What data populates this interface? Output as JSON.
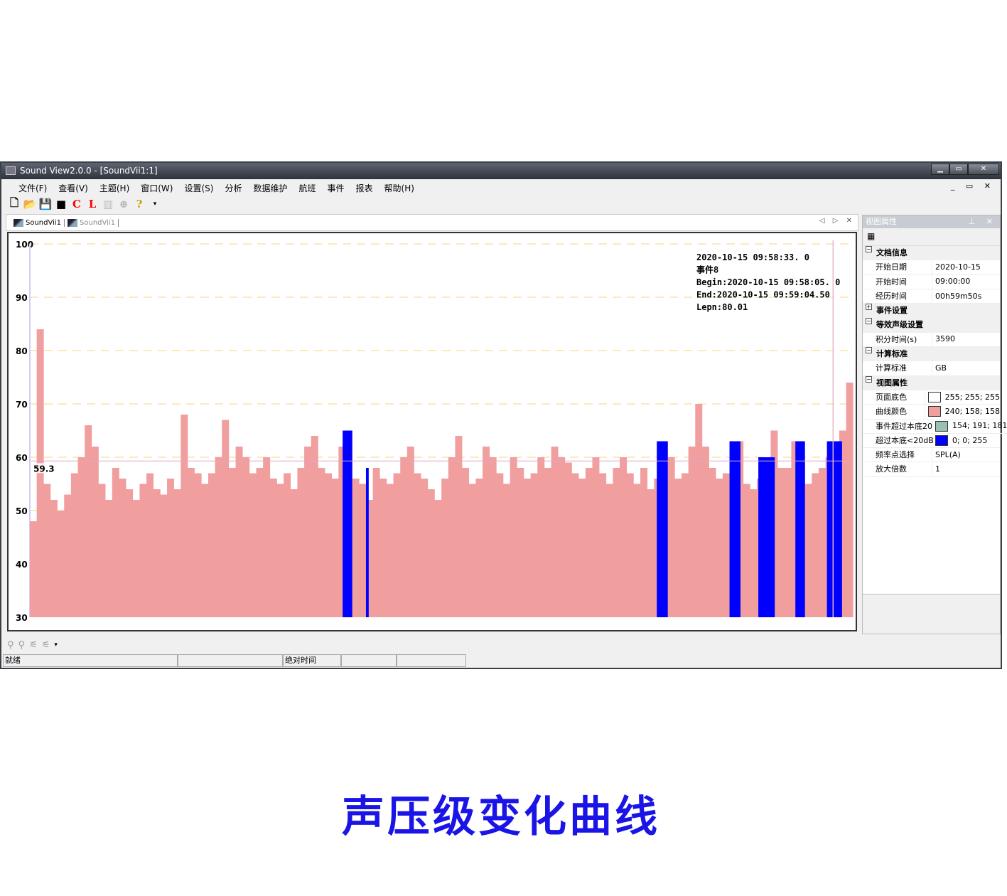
{
  "window": {
    "title": "Sound View2.0.0 - [SoundVii1:1]",
    "controls": [
      "minimize",
      "maximize",
      "close"
    ]
  },
  "menu": [
    "文件(F)",
    "查看(V)",
    "主题(H)",
    "窗口(W)",
    "设置(S)",
    "分析",
    "数据维护",
    "航班",
    "事件",
    "报表",
    "帮助(H)"
  ],
  "toolbar": [
    {
      "icon": "new-file-icon",
      "glyph": "🗋"
    },
    {
      "icon": "open-folder-icon",
      "glyph": "📂"
    },
    {
      "icon": "save-icon",
      "glyph": "💾"
    },
    {
      "icon": "black-color-icon",
      "glyph": "■"
    },
    {
      "icon": "c-icon",
      "glyph": "C",
      "color": "#ff0000"
    },
    {
      "icon": "l-icon",
      "glyph": "L",
      "color": "#ff0000"
    },
    {
      "icon": "chart-icon",
      "glyph": "▥",
      "color": "#bbbbbb"
    },
    {
      "icon": "add-circle-icon",
      "glyph": "⊕",
      "color": "#bbbbbb"
    },
    {
      "icon": "help-icon",
      "glyph": "?",
      "color": "#c8a000"
    },
    {
      "icon": "dropdown-icon",
      "glyph": "▾"
    }
  ],
  "tabs": [
    {
      "label": "SoundVii1",
      "active": true
    },
    {
      "label": "SoundVii1",
      "active": false
    }
  ],
  "properties": {
    "title": "视图属性",
    "sections": [
      {
        "label": "文档信息",
        "expanded": true,
        "rows": [
          {
            "k": "开始日期",
            "v": "2020-10-15"
          },
          {
            "k": "开始时间",
            "v": "09:00:00"
          },
          {
            "k": "经历时间",
            "v": "00h59m50s"
          }
        ]
      },
      {
        "label": "事件设置",
        "expanded": false,
        "rows": []
      },
      {
        "label": "等效声级设置",
        "expanded": true,
        "rows": [
          {
            "k": "积分时间(s)",
            "v": "3590"
          }
        ]
      },
      {
        "label": "计算标准",
        "expanded": true,
        "rows": [
          {
            "k": "计算标准",
            "v": "GB"
          }
        ]
      },
      {
        "label": "视图属性",
        "expanded": true,
        "rows": [
          {
            "k": "页面底色",
            "v": "255; 255; 255",
            "color": "#ffffff"
          },
          {
            "k": "曲线颜色",
            "v": "240; 158; 158",
            "color": "#f09e9e"
          },
          {
            "k": "事件超过本底20",
            "v": "154; 191; 181",
            "color": "#9abfb5"
          },
          {
            "k": "超过本底<20dB",
            "v": "0; 0; 255",
            "color": "#0000ff"
          },
          {
            "k": "频率点选择",
            "v": "SPL(A)"
          },
          {
            "k": "放大倍数",
            "v": "1"
          }
        ]
      }
    ]
  },
  "status": [
    "就绪",
    "",
    "绝对时间",
    "",
    ""
  ],
  "caption": "声压级变化曲线",
  "chart_data": {
    "type": "bar",
    "x_unit": "minutes after 09:00:00",
    "x_step": 0.5,
    "xlim": [
      0,
      59.83
    ],
    "ylim": [
      30,
      100
    ],
    "yticks": [
      30,
      40,
      50,
      60,
      70,
      80,
      90,
      100
    ],
    "grid": true,
    "reference_line": {
      "label": "59.3",
      "value": 59.3
    },
    "cursor_minute": 58.55,
    "bar_color": "#f09e9e",
    "event_color": "#0000ff",
    "values": [
      48,
      84,
      55,
      52,
      50,
      53,
      57,
      60,
      66,
      62,
      55,
      52,
      58,
      56,
      54,
      52,
      55,
      57,
      54,
      53,
      56,
      54,
      68,
      58,
      57,
      55,
      57,
      60,
      67,
      58,
      62,
      60,
      57,
      58,
      60,
      56,
      55,
      57,
      54,
      58,
      62,
      64,
      58,
      57,
      56,
      62,
      65,
      56,
      55,
      52,
      58,
      56,
      55,
      57,
      60,
      62,
      57,
      56,
      54,
      52,
      56,
      60,
      64,
      58,
      55,
      56,
      62,
      60,
      57,
      55,
      60,
      58,
      56,
      57,
      60,
      58,
      62,
      60,
      59,
      57,
      56,
      58,
      60,
      57,
      55,
      58,
      60,
      57,
      55,
      58,
      54,
      56,
      63,
      60,
      56,
      57,
      62,
      70,
      62,
      58,
      56,
      57,
      61,
      63,
      55,
      54,
      56,
      60,
      65,
      58,
      58,
      63,
      59,
      55,
      57,
      58,
      60,
      63,
      65,
      74
    ],
    "events_minutes": [
      [
        22.8,
        23.5
      ],
      [
        24.5,
        24.7
      ],
      [
        45.7,
        46.5
      ],
      [
        51.0,
        51.8
      ],
      [
        53.1,
        54.3
      ],
      [
        55.8,
        56.5
      ],
      [
        58.1,
        59.2
      ]
    ],
    "annotation": [
      "2020-10-15 09:58:33. 0",
      "事件8",
      "Begin:2020-10-15 09:58:05. 0",
      "End:2020-10-15 09:59:04.50",
      "Lepn:80.01"
    ]
  }
}
